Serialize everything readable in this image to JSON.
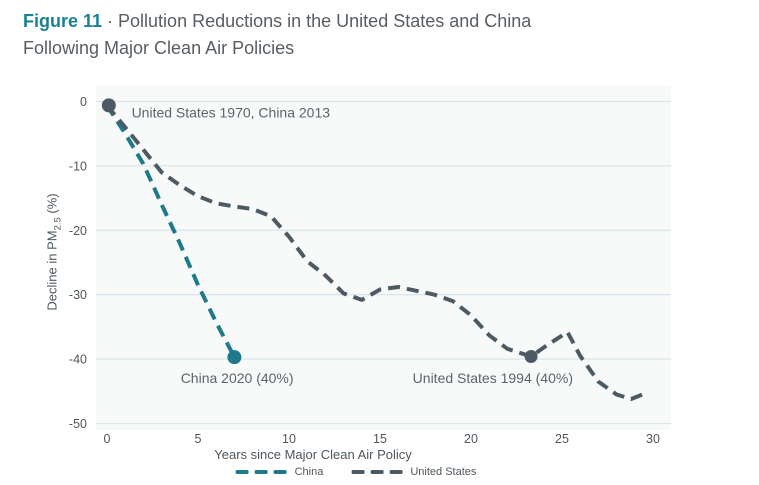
{
  "figure": {
    "label": "Figure 11",
    "separator": "·",
    "title_line1": "Pollution Reductions in the United States and China",
    "title_line2": "Following Major Clean Air Policies"
  },
  "chart_data": {
    "type": "line",
    "title": "Pollution Reductions in the United States and China Following Major Clean Air Policies",
    "xlabel": "Years since Major Clean Air Policy",
    "ylabel": "Decline in PM2.5 (%)",
    "ylabel_parts": {
      "pre": "Decline in PM",
      "sub": "2.5",
      "post": " (%)"
    },
    "xlim": [
      0,
      30
    ],
    "ylim": [
      -50,
      0
    ],
    "xticks": [
      0,
      5,
      10,
      15,
      20,
      25,
      30
    ],
    "yticks": [
      0,
      -10,
      -20,
      -30,
      -40,
      -50
    ],
    "grid": true,
    "legend_position": "bottom",
    "line_style": "dashed",
    "series": [
      {
        "name": "China",
        "color": "#1d7a8a",
        "dashed": true,
        "points": [
          [
            0,
            -0.6
          ],
          [
            1,
            -5
          ],
          [
            2,
            -9.7
          ],
          [
            3,
            -16
          ],
          [
            4,
            -22
          ],
          [
            5,
            -28.5
          ],
          [
            6,
            -34.3
          ],
          [
            7,
            -39.7
          ]
        ]
      },
      {
        "name": "United States",
        "color": "#4d5a63",
        "dashed": true,
        "points": [
          [
            0,
            -0.6
          ],
          [
            1,
            -4
          ],
          [
            2,
            -7.5
          ],
          [
            3,
            -11
          ],
          [
            4,
            -13
          ],
          [
            5,
            -14.7
          ],
          [
            6,
            -15.8
          ],
          [
            7,
            -16.3
          ],
          [
            8,
            -16.7
          ],
          [
            9,
            -17.8
          ],
          [
            10,
            -21
          ],
          [
            11,
            -24.8
          ],
          [
            12,
            -27
          ],
          [
            13,
            -29.8
          ],
          [
            14,
            -30.8
          ],
          [
            15,
            -29.2
          ],
          [
            16,
            -28.8
          ],
          [
            17,
            -29.4
          ],
          [
            18,
            -30
          ],
          [
            19,
            -31
          ],
          [
            20,
            -33.2
          ],
          [
            21,
            -36.3
          ],
          [
            22,
            -38.4
          ],
          [
            23.3,
            -39.6
          ],
          [
            24.2,
            -37.8
          ],
          [
            25.3,
            -35.8
          ],
          [
            26,
            -39.5
          ],
          [
            27,
            -43.5
          ],
          [
            28,
            -45.5
          ],
          [
            28.8,
            -46.2
          ],
          [
            29.5,
            -45.4
          ]
        ]
      }
    ],
    "markers": [
      {
        "name": "start-marker",
        "x": 0.1,
        "y": -0.6,
        "r": 7,
        "color": "#4d5a63"
      },
      {
        "name": "china-2020-marker",
        "x": 7,
        "y": -39.7,
        "r": 7,
        "color": "#1d7a8a"
      },
      {
        "name": "us-1994-marker",
        "x": 23.3,
        "y": -39.6,
        "r": 6.5,
        "color": "#4d5a63"
      }
    ],
    "annotations": [
      {
        "name": "start-annotation",
        "text": "United States 1970, China 2013",
        "x": 1.35,
        "y": -1.7,
        "anchor": "start"
      },
      {
        "name": "china-2020-annotation",
        "text": "China 2020 (40%)",
        "x": 7.15,
        "y": -42.9,
        "anchor": "middle"
      },
      {
        "name": "us-1994-annotation",
        "text": "United States 1994 (40%)",
        "x": 21.2,
        "y": -42.9,
        "anchor": "middle"
      }
    ]
  },
  "legend": {
    "items": [
      {
        "label": "China",
        "color": "#1d7a8a"
      },
      {
        "label": "United States",
        "color": "#4d5a63"
      }
    ]
  },
  "colors": {
    "title_teal": "#1a8196",
    "title_gray": "#575d62",
    "plot_bg": "#f8fafa",
    "gridline": "#dbe6ea",
    "axis_text": "#4d575e",
    "annotation_text": "#5b646b",
    "china_line": "#1d7a8a",
    "us_line": "#4d5a63"
  }
}
